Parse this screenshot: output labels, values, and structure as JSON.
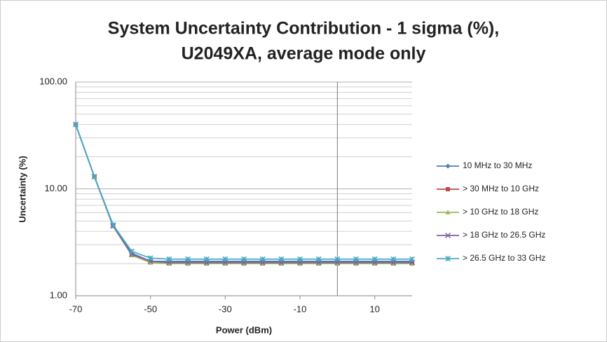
{
  "chart_data": {
    "type": "line",
    "title_lines": [
      "System Uncertainty Contribution - 1 sigma (%),",
      "U2049XA, average mode only"
    ],
    "x_label": "Power (dBm)",
    "y_label": "Uncertainty (%)",
    "x": [
      -70,
      -65,
      -60,
      -55,
      -50,
      -45,
      -40,
      -35,
      -30,
      -25,
      -20,
      -15,
      -10,
      -5,
      0,
      5,
      10,
      15,
      20
    ],
    "series": [
      {
        "name": "10 MHz to 30 MHz",
        "color": "#4a7ebb",
        "marker": "diamond",
        "values": [
          40,
          13,
          4.6,
          2.5,
          2.1,
          2.1,
          2.1,
          2.1,
          2.1,
          2.1,
          2.1,
          2.1,
          2.1,
          2.1,
          2.1,
          2.1,
          2.1,
          2.1,
          2.1
        ]
      },
      {
        "name": "> 30 MHz to 10 GHz",
        "color": "#be4b48",
        "marker": "square",
        "values": [
          40,
          13,
          4.5,
          2.4,
          2.05,
          2,
          2,
          2,
          2,
          2,
          2,
          2,
          2,
          2,
          2,
          2,
          2,
          2,
          2
        ]
      },
      {
        "name": "> 10 GHz to 18 GHz",
        "color": "#98b954",
        "marker": "triangle",
        "values": [
          40,
          13,
          4.5,
          2.4,
          2.05,
          2,
          2,
          2,
          2,
          2,
          2,
          2,
          2,
          2,
          2,
          2,
          2,
          2,
          2
        ]
      },
      {
        "name": "> 18 GHz to 26.5 GHz",
        "color": "#7d60a0",
        "marker": "x",
        "values": [
          40,
          13,
          4.5,
          2.45,
          2.1,
          2.05,
          2.05,
          2.05,
          2.05,
          2.05,
          2.05,
          2.05,
          2.05,
          2.05,
          2.05,
          2.05,
          2.05,
          2.05,
          2.05
        ]
      },
      {
        "name": "> 26.5 GHz to 33 GHz",
        "color": "#46aac5",
        "marker": "star",
        "values": [
          40,
          13,
          4.6,
          2.6,
          2.25,
          2.2,
          2.2,
          2.2,
          2.2,
          2.2,
          2.2,
          2.2,
          2.2,
          2.2,
          2.2,
          2.2,
          2.2,
          2.2,
          2.2
        ]
      }
    ],
    "xlim": [
      -70,
      20
    ],
    "xticks": [
      -70,
      -50,
      -30,
      -10,
      10
    ],
    "ylim": [
      1,
      100
    ],
    "log_y": true,
    "yticks": [
      {
        "value": 1,
        "label": "1.00"
      },
      {
        "value": 10,
        "label": "10.00"
      },
      {
        "value": 100,
        "label": "100.00"
      }
    ],
    "minor_yticks": [
      2,
      3,
      4,
      5,
      6,
      7,
      8,
      9,
      20,
      30,
      40,
      50,
      60,
      70,
      80,
      90
    ],
    "vline_x": 0,
    "grid": true,
    "legend": "right"
  }
}
